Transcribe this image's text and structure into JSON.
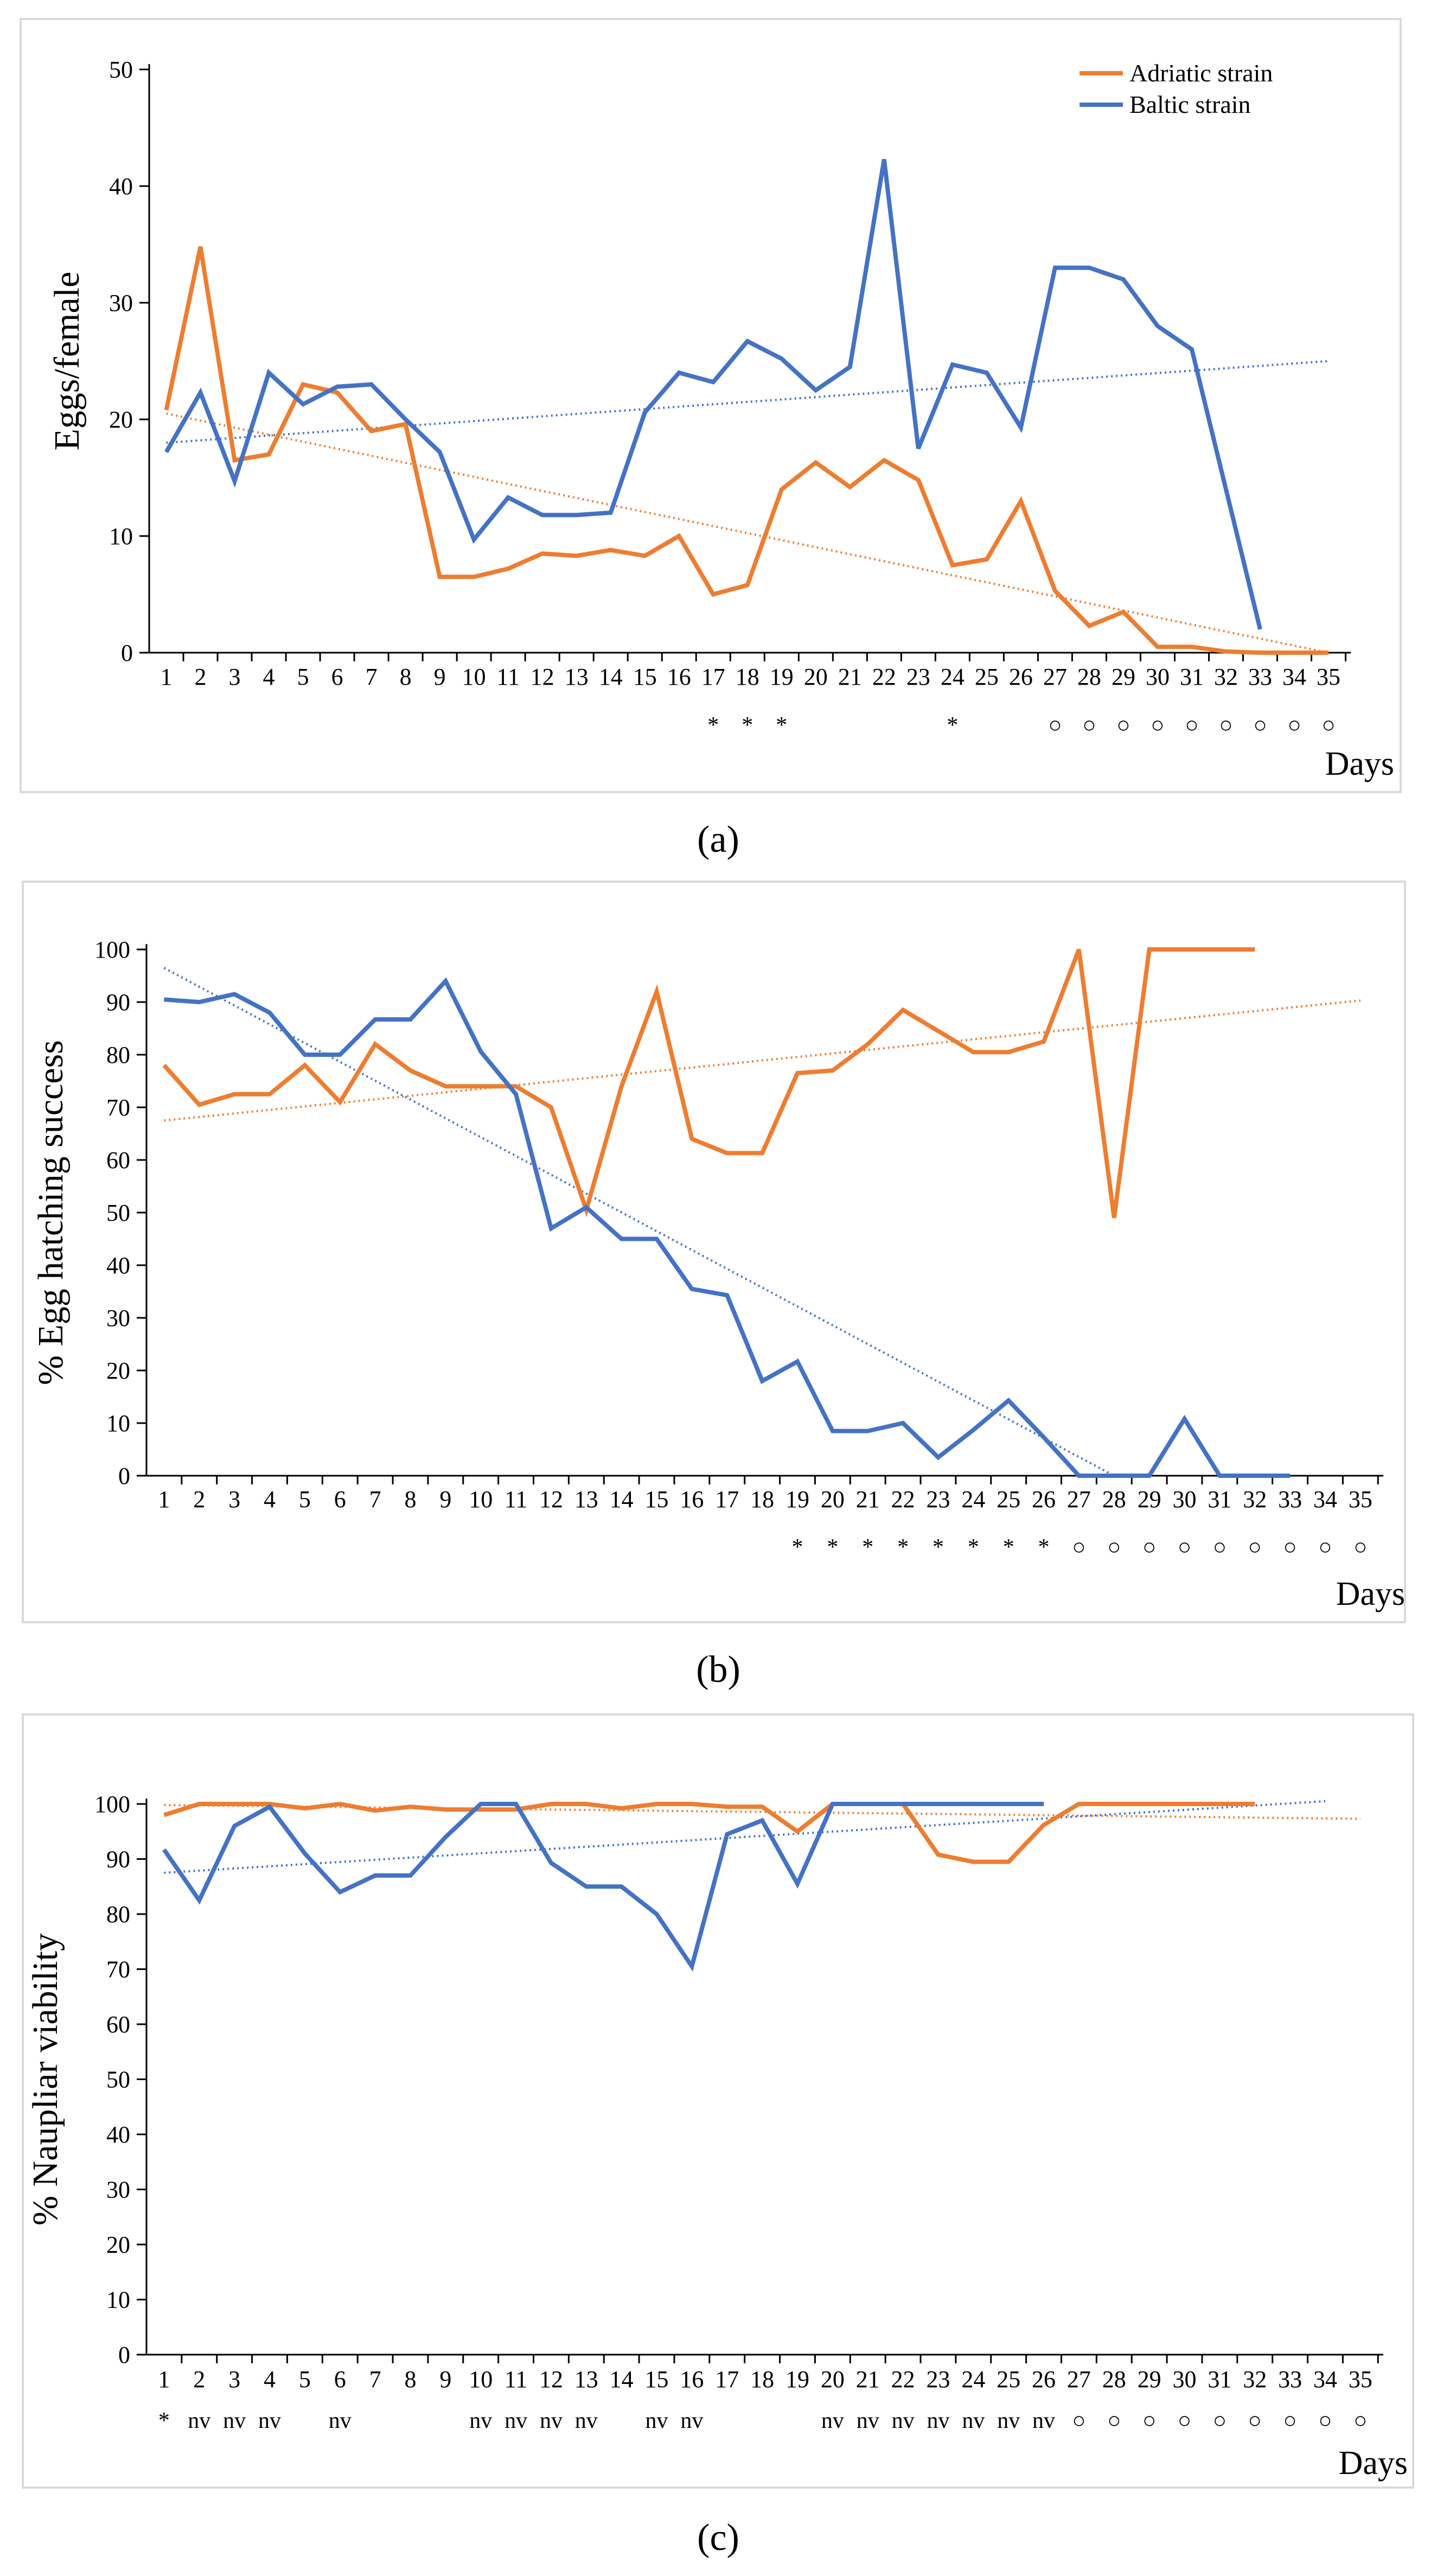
{
  "colors": {
    "adriatic": "#ed7d31",
    "baltic": "#4472c4"
  },
  "chart_data": [
    {
      "type": "line",
      "caption": "(a)",
      "ylabel": "Eggs/female",
      "xlabel": "Days",
      "ylim": [
        0,
        50
      ],
      "yticks": [
        0,
        10,
        20,
        30,
        40,
        50
      ],
      "x": [
        1,
        2,
        3,
        4,
        5,
        6,
        7,
        8,
        9,
        10,
        11,
        12,
        13,
        14,
        15,
        16,
        17,
        18,
        19,
        20,
        21,
        22,
        23,
        24,
        25,
        26,
        27,
        28,
        29,
        30,
        31,
        32,
        33,
        34,
        35
      ],
      "legend": {
        "position": "top-right"
      },
      "series": [
        {
          "name": "Adriatic strain",
          "color": "adriatic",
          "values": [
            20.8,
            34.8,
            16.5,
            17,
            23,
            22.3,
            19,
            19.6,
            6.5,
            6.5,
            7.2,
            8.5,
            8.3,
            8.8,
            8.3,
            10,
            5,
            5.8,
            14,
            16.3,
            14.2,
            16.5,
            14.8,
            7.5,
            8,
            13,
            5.3,
            2.3,
            3.5,
            0.5,
            0.5,
            0.1,
            0,
            0,
            0
          ],
          "trend": [
            20.5,
            0
          ]
        },
        {
          "name": "Baltic strain",
          "color": "baltic",
          "values": [
            17.2,
            22.3,
            14.7,
            24,
            21.3,
            22.8,
            23,
            20,
            17.2,
            9.7,
            13.3,
            11.8,
            11.8,
            12,
            20.6,
            24,
            23.2,
            26.7,
            25.2,
            22.5,
            24.5,
            42.3,
            17.5,
            24.7,
            24,
            19.3,
            33,
            33,
            32,
            28,
            26,
            14,
            2,
            null,
            null
          ],
          "trend": [
            18,
            25
          ]
        }
      ],
      "markers": [
        {
          "day": 17,
          "symbol": "*"
        },
        {
          "day": 18,
          "symbol": "*"
        },
        {
          "day": 19,
          "symbol": "*"
        },
        {
          "day": 24,
          "symbol": "*"
        },
        {
          "day": 27,
          "symbol": "○"
        },
        {
          "day": 28,
          "symbol": "○"
        },
        {
          "day": 29,
          "symbol": "○"
        },
        {
          "day": 30,
          "symbol": "○"
        },
        {
          "day": 31,
          "symbol": "○"
        },
        {
          "day": 32,
          "symbol": "○"
        },
        {
          "day": 33,
          "symbol": "○"
        },
        {
          "day": 34,
          "symbol": "○"
        },
        {
          "day": 35,
          "symbol": "○"
        }
      ]
    },
    {
      "type": "line",
      "caption": "(b)",
      "ylabel": "%  Egg hatching success",
      "xlabel": "Days",
      "ylim": [
        0,
        100
      ],
      "yticks": [
        0,
        10,
        20,
        30,
        40,
        50,
        60,
        70,
        80,
        90,
        100
      ],
      "x": [
        1,
        2,
        3,
        4,
        5,
        6,
        7,
        8,
        9,
        10,
        11,
        12,
        13,
        14,
        15,
        16,
        17,
        18,
        19,
        20,
        21,
        22,
        23,
        24,
        25,
        26,
        27,
        28,
        29,
        30,
        31,
        32,
        33,
        34,
        35
      ],
      "series": [
        {
          "name": "Adriatic strain",
          "color": "adriatic",
          "values": [
            78,
            70.5,
            72.5,
            72.5,
            78,
            71,
            82,
            77,
            74,
            74,
            74,
            70,
            50.5,
            74,
            92,
            64,
            61.3,
            61.3,
            76.5,
            77,
            82,
            88.5,
            84.5,
            80.5,
            80.5,
            82.5,
            100,
            49,
            100,
            100,
            100,
            100,
            null,
            null,
            null
          ],
          "trend": [
            67.5,
            90.3
          ]
        },
        {
          "name": "Baltic strain",
          "color": "baltic",
          "values": [
            90.5,
            90,
            91.5,
            88,
            80,
            80,
            86.7,
            86.7,
            94,
            80.6,
            72.5,
            47,
            51,
            45,
            45,
            35.5,
            34.3,
            18,
            21.7,
            8.5,
            8.5,
            10,
            3.5,
            8.7,
            14.3,
            7.3,
            0,
            0,
            0,
            10.8,
            0,
            0,
            0,
            null,
            null
          ],
          "trend": [
            96.5,
            0
          ]
        }
      ],
      "trend_end_day": {
        "Adriatic strain": 35,
        "Baltic strain": 28
      },
      "markers": [
        {
          "day": 19,
          "symbol": "*"
        },
        {
          "day": 20,
          "symbol": "*"
        },
        {
          "day": 21,
          "symbol": "*"
        },
        {
          "day": 22,
          "symbol": "*"
        },
        {
          "day": 23,
          "symbol": "*"
        },
        {
          "day": 24,
          "symbol": "*"
        },
        {
          "day": 25,
          "symbol": "*"
        },
        {
          "day": 26,
          "symbol": "*"
        },
        {
          "day": 27,
          "symbol": "○"
        },
        {
          "day": 28,
          "symbol": "○"
        },
        {
          "day": 29,
          "symbol": "○"
        },
        {
          "day": 30,
          "symbol": "○"
        },
        {
          "day": 31,
          "symbol": "○"
        },
        {
          "day": 32,
          "symbol": "○"
        },
        {
          "day": 33,
          "symbol": "○"
        },
        {
          "day": 34,
          "symbol": "○"
        },
        {
          "day": 35,
          "symbol": "○"
        }
      ]
    },
    {
      "type": "line",
      "caption": "(c)",
      "ylabel": "% Naupliar viability",
      "xlabel": "Days",
      "ylim": [
        0,
        100
      ],
      "yticks": [
        0,
        10,
        20,
        30,
        40,
        50,
        60,
        70,
        80,
        90,
        100
      ],
      "x": [
        1,
        2,
        3,
        4,
        5,
        6,
        7,
        8,
        9,
        10,
        11,
        12,
        13,
        14,
        15,
        16,
        17,
        18,
        19,
        20,
        21,
        22,
        23,
        24,
        25,
        26,
        27,
        28,
        29,
        30,
        31,
        32,
        33,
        34,
        35
      ],
      "series": [
        {
          "name": "Adriatic strain",
          "color": "adriatic",
          "values": [
            98,
            100,
            100,
            100,
            99.2,
            100,
            98.8,
            99.5,
            99,
            99,
            99,
            100,
            100,
            99.2,
            100,
            100,
            99.5,
            99.5,
            95,
            100,
            100,
            100,
            90.8,
            89.5,
            89.5,
            96.2,
            100,
            100,
            100,
            100,
            100,
            100,
            null,
            null,
            null
          ],
          "trend": [
            99.8,
            97.3
          ]
        },
        {
          "name": "Baltic strain",
          "color": "baltic",
          "values": [
            91.7,
            82.5,
            96,
            99.5,
            91,
            84,
            87,
            87,
            94,
            100,
            100,
            89.3,
            85,
            85,
            80,
            70.5,
            94.5,
            97,
            85.5,
            100,
            100,
            100,
            100,
            100,
            100,
            100,
            null,
            null,
            null,
            null,
            null,
            null,
            null,
            null,
            null
          ],
          "trend": [
            87.5,
            100.5
          ]
        }
      ],
      "trend_end_day": {
        "Adriatic strain": 35,
        "Baltic strain": 34
      },
      "markers": [
        {
          "day": 1,
          "symbol": "*"
        },
        {
          "day": 2,
          "symbol": "nv"
        },
        {
          "day": 3,
          "symbol": "nv"
        },
        {
          "day": 4,
          "symbol": "nv"
        },
        {
          "day": 6,
          "symbol": "nv"
        },
        {
          "day": 10,
          "symbol": "nv"
        },
        {
          "day": 11,
          "symbol": "nv"
        },
        {
          "day": 12,
          "symbol": "nv"
        },
        {
          "day": 13,
          "symbol": "nv"
        },
        {
          "day": 15,
          "symbol": "nv"
        },
        {
          "day": 16,
          "symbol": "nv"
        },
        {
          "day": 20,
          "symbol": "nv"
        },
        {
          "day": 21,
          "symbol": "nv"
        },
        {
          "day": 22,
          "symbol": "nv"
        },
        {
          "day": 23,
          "symbol": "nv"
        },
        {
          "day": 24,
          "symbol": "nv"
        },
        {
          "day": 25,
          "symbol": "nv"
        },
        {
          "day": 26,
          "symbol": "nv"
        },
        {
          "day": 27,
          "symbol": "○"
        },
        {
          "day": 28,
          "symbol": "○"
        },
        {
          "day": 29,
          "symbol": "○"
        },
        {
          "day": 30,
          "symbol": "○"
        },
        {
          "day": 31,
          "symbol": "○"
        },
        {
          "day": 32,
          "symbol": "○"
        },
        {
          "day": 33,
          "symbol": "○"
        },
        {
          "day": 34,
          "symbol": "○"
        },
        {
          "day": 35,
          "symbol": "○"
        }
      ]
    }
  ]
}
